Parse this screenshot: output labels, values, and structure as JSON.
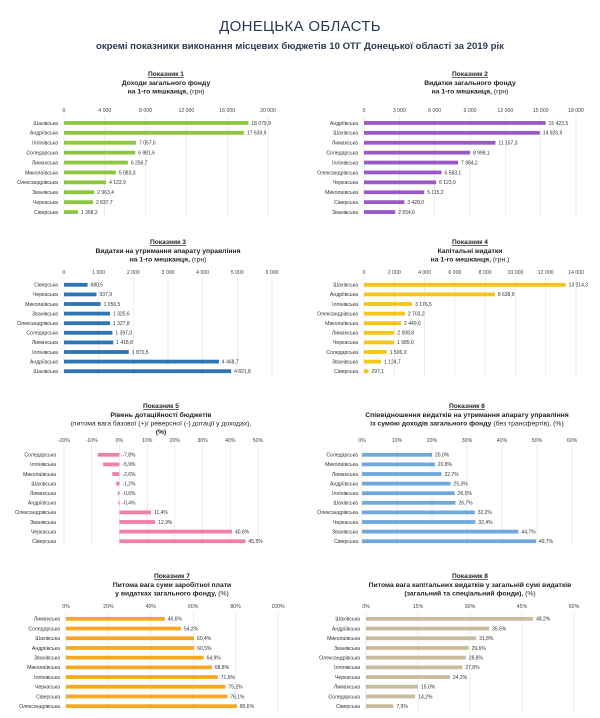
{
  "header": {
    "title": "ДОНЕЦЬКА ОБЛАСТЬ",
    "subtitle": "окремі показники виконання місцевих бюджетів 10 ОТГ Донецької області за 2019 рік"
  },
  "chart_data": [
    {
      "name": "Показник 1",
      "title_lines": [
        [
          "Доходи загального фонду",
          ""
        ],
        [
          "на 1-го мешканця, ",
          "(грн)"
        ]
      ],
      "type": "bar",
      "color": "#8dc63f",
      "xlim": [
        0,
        20000
      ],
      "ticks": [
        "0",
        "4 000",
        "8 000",
        "12 000",
        "16 000",
        "20 000"
      ],
      "categories": [
        "Шахівська",
        "Андріївська",
        "Іллінівська",
        "Соледарська",
        "Лиманська",
        "Миколаївська",
        "Олександрівська",
        "Званівська",
        "Черкаська",
        "Сіверська"
      ],
      "values": [
        18079.9,
        17639.9,
        7057.6,
        6981.6,
        6256.7,
        5083.3,
        4123.9,
        2963.4,
        2837.7,
        1368.2
      ],
      "value_labels": [
        "18 079,9",
        "17 639,9",
        "7 057,6",
        "6 981,6",
        "6 256,7",
        "5 083,3",
        "4 123,9",
        "2 963,4",
        "2 837,7",
        "1 368,2"
      ]
    },
    {
      "name": "Показник 2",
      "title_lines": [
        [
          "Видатки загального фонду",
          ""
        ],
        [
          "на 1-го мешканця, ",
          "(грн)"
        ]
      ],
      "type": "bar",
      "color": "#9b59c8",
      "xlim": [
        0,
        18000
      ],
      "ticks": [
        "0",
        "3 000",
        "6 000",
        "9 000",
        "12 000",
        "15 000",
        "18 000"
      ],
      "categories": [
        "Андріївська",
        "Шахівська",
        "Лиманська",
        "Соледарська",
        "Іллінівська",
        "Олександрівська",
        "Черкаська",
        "Миколаївська",
        "Сіверська",
        "Званівська"
      ],
      "values": [
        15423.5,
        14926.9,
        11157.3,
        8998.1,
        7984.2,
        6583.1,
        6123.9,
        5115.2,
        3428.0,
        2654.6
      ],
      "value_labels": [
        "15 423,5",
        "14 926,9",
        "11 157,3",
        "8 998,1",
        "7 984,2",
        "6 583,1",
        "6 123,9",
        "5 115,2",
        "3 428,0",
        "2 654,6"
      ]
    },
    {
      "name": "Показник 3",
      "title_lines": [
        [
          "Видатки на утримання апарату управління",
          ""
        ],
        [
          "на 1-го мешканця, ",
          "(грн)"
        ]
      ],
      "type": "bar",
      "color": "#2e75b6",
      "xlim": [
        0,
        6000
      ],
      "ticks": [
        "0",
        "1 000",
        "2 000",
        "3 000",
        "4 000",
        "5 000",
        "6 000"
      ],
      "categories": [
        "Сіверська",
        "Черкаська",
        "Миколаївська",
        "Званівська",
        "Олександрівська",
        "Соледарська",
        "Лиманська",
        "Іллінівська",
        "Андріївська",
        "Шахівська"
      ],
      "values": [
        680.5,
        937.9,
        1056.5,
        1325.6,
        1327.8,
        1397.0,
        1418.8,
        1870.5,
        4468.7,
        4821.8
      ],
      "value_labels": [
        "680,5",
        "937,9",
        "1 056,5",
        "1 325,6",
        "1 327,8",
        "1 397,0",
        "1 418,8",
        "1 870,5",
        "4 468,7",
        "4 821,8"
      ]
    },
    {
      "name": "Показник 4",
      "title_lines": [
        [
          "Капітальні видатки",
          ""
        ],
        [
          "на 1-го мешканця, ",
          "(грн.)"
        ]
      ],
      "type": "bar",
      "color": "#f5c518",
      "xlim": [
        0,
        14000
      ],
      "ticks": [
        "0",
        "2 000",
        "4 000",
        "6 000",
        "8 000",
        "10 000",
        "12 000",
        "14 000"
      ],
      "categories": [
        "Шахівська",
        "Андріївська",
        "Іллінівська",
        "Олександрівська",
        "Миколаївська",
        "Лиманська",
        "Черкаська",
        "Соледарська",
        "Званівська",
        "Сіверська"
      ],
      "values": [
        13314.3,
        8638.9,
        3176.5,
        2703.2,
        2449.6,
        2008.8,
        1985.0,
        1506.0,
        1124.7,
        297.1
      ],
      "value_labels": [
        "13 314,3",
        "8 638,9",
        "3 176,5",
        "2 703,2",
        "2 449,6",
        "2 008,8",
        "1 985,0",
        "1 506,0",
        "1 124,7",
        "297,1"
      ]
    },
    {
      "name": "Показник 5",
      "title_lines": [
        [
          "Рівень дотаційності бюджетів",
          ""
        ],
        [
          "",
          "(питома вага базової (+)/ реверсної (-) дотації  у доходах), "
        ],
        [
          "(%)",
          ""
        ]
      ],
      "type": "bar",
      "color": "#f080a8",
      "xlim": [
        -20,
        50
      ],
      "ticks": [
        "-20%",
        "-10%",
        "0%",
        "10%",
        "20%",
        "30%",
        "40%",
        "50%"
      ],
      "categories": [
        "Соледарська",
        "Іллінівська",
        "Миколаївська",
        "Шахівська",
        "Лиманська",
        "Андріївська",
        "Олександрівська",
        "Званівська",
        "Черкаська",
        "Сіверська"
      ],
      "values": [
        -7.8,
        -5.9,
        -2.6,
        -1.2,
        -0.6,
        -0.4,
        11.4,
        12.9,
        40.6,
        45.5
      ],
      "value_labels": [
        "-7,8%",
        "-5,9%",
        "-2,6%",
        "-1,2%",
        "-0,6%",
        "-0,4%",
        "11,4%",
        "12,9%",
        "40,6%",
        "45,5%"
      ]
    },
    {
      "name": "Показник 6",
      "title_lines": [
        [
          "Співвідношення видатків на утримання апарату управління",
          ""
        ],
        [
          "із сумою доходів загального фонду ",
          "(без трансфертів), (%)"
        ]
      ],
      "type": "bar",
      "color": "#6fa8dc",
      "xlim": [
        0,
        60
      ],
      "ticks": [
        "0%",
        "10%",
        "20%",
        "30%",
        "40%",
        "50%",
        "60%"
      ],
      "categories": [
        "Соледарська",
        "Миколаївська",
        "Лиманська",
        "Андріївська",
        "Іллінівська",
        "Шахівська",
        "Олександрівська",
        "Черкаська",
        "Званівська",
        "Сіверська"
      ],
      "values": [
        20.0,
        20.8,
        22.7,
        25.3,
        26.5,
        26.7,
        32.2,
        32.4,
        44.7,
        49.7
      ],
      "value_labels": [
        "20,0%",
        "20,8%",
        "22,7%",
        "25,3%",
        "26,5%",
        "26,7%",
        "32,2%",
        "32,4%",
        "44,7%",
        "49,7%"
      ]
    },
    {
      "name": "Показник 7",
      "title_lines": [
        [
          "Питома вага суми заробітної плати",
          ""
        ],
        [
          "у видатках загального фонду, ",
          "(%)"
        ]
      ],
      "type": "bar",
      "color": "#f7a823",
      "xlim": [
        0,
        100
      ],
      "ticks": [
        "0%",
        "20%",
        "40%",
        "60%",
        "80%",
        "100%"
      ],
      "categories": [
        "Лиманська",
        "Соледарська",
        "Шахівська",
        "Андріївська",
        "Званівська",
        "Миколаївська",
        "Іллінівська",
        "Черкаська",
        "Сіверська",
        "Олександрівська"
      ],
      "values": [
        46.6,
        54.2,
        60.4,
        60.5,
        64.9,
        68.8,
        71.6,
        75.2,
        76.1,
        80.6
      ],
      "value_labels": [
        "46,6%",
        "54,2%",
        "60,4%",
        "60,5%",
        "64,9%",
        "68,8%",
        "71,6%",
        "75,2%",
        "76,1%",
        "80,6%"
      ]
    },
    {
      "name": "Показник 8",
      "title_lines": [
        [
          "Питома вага капітальних видатків у загальній сумі видатків",
          ""
        ],
        [
          "(загальний та спеціальний фонди), ",
          "(%)"
        ]
      ],
      "type": "bar",
      "color": "#c9bc9c",
      "xlim": [
        0,
        60
      ],
      "ticks": [
        "0%",
        "15%",
        "30%",
        "45%",
        "60%"
      ],
      "categories": [
        "Шахівська",
        "Андріївська",
        "Миколаївська",
        "Званівська",
        "Олександрівська",
        "Іллінівська",
        "Черкаська",
        "Лиманська",
        "Соледарська",
        "Сіверська"
      ],
      "values": [
        48.2,
        35.5,
        31.8,
        29.6,
        28.8,
        27.8,
        24.2,
        15.0,
        14.2,
        7.9
      ],
      "value_labels": [
        "48,2%",
        "35,5%",
        "31,8%",
        "29,6%",
        "28,8%",
        "27,8%",
        "24,2%",
        "15,0%",
        "14,2%",
        "7,9%"
      ]
    }
  ]
}
